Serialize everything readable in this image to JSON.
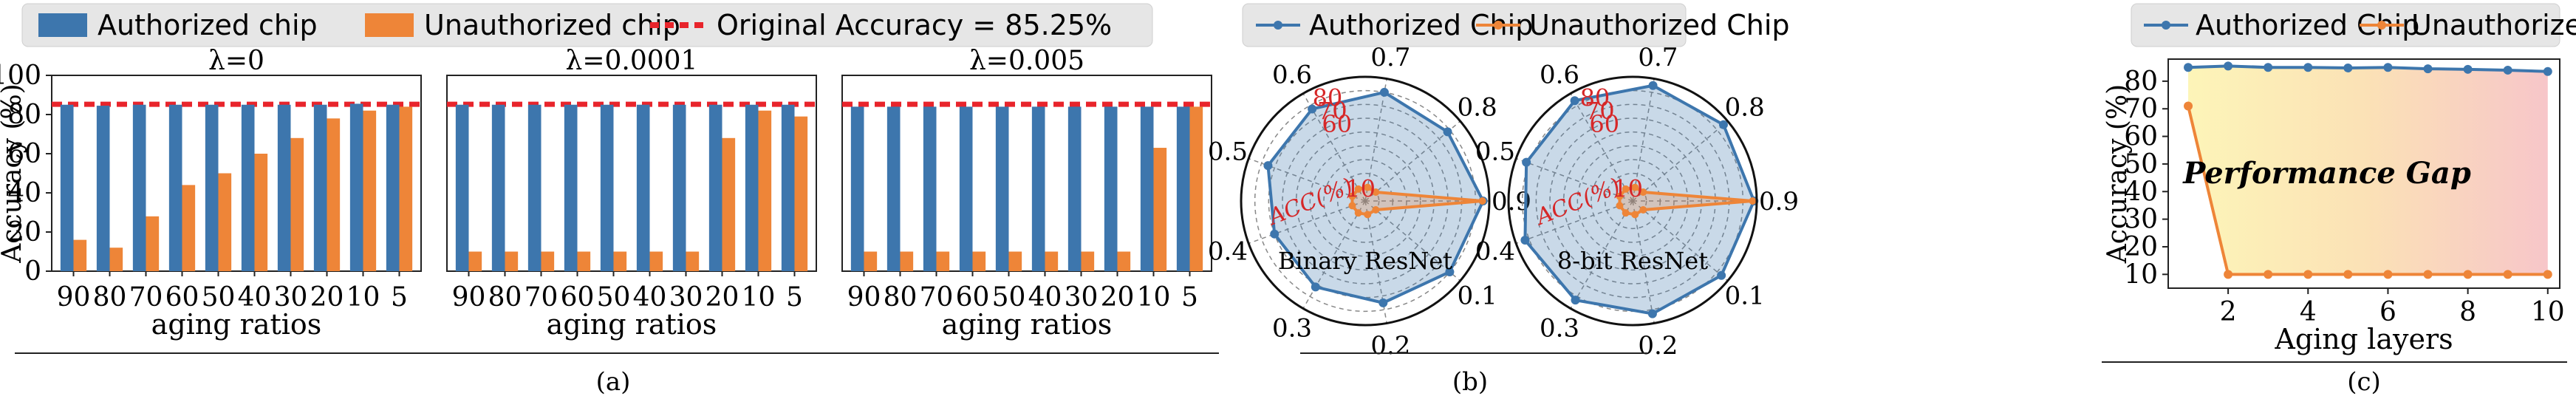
{
  "legend_a": {
    "authorized": "Authorized chip",
    "unauthorized": "Unauthorized chip",
    "original": "Original Accuracy = 85.25%"
  },
  "legend_b": {
    "authorized": "Authorized Chip",
    "unauthorized": "Unauthorized Chip"
  },
  "legend_c": {
    "authorized": "Authorized Chip",
    "unauthorized": "Unauthorized Chip"
  },
  "captions": {
    "a": "(a)",
    "b": "(b)",
    "c": "(c)"
  },
  "colors": {
    "authorized": "#3d76ad",
    "unauthorized": "#ee8538",
    "original": "#e8242b",
    "acc_label": "#d62728"
  },
  "chart_data": [
    {
      "id": "a",
      "type": "bar",
      "ylabel": "Accuracy (%)",
      "xlabel": "aging ratios",
      "ylim": [
        0,
        100
      ],
      "yticks": [
        0,
        20,
        40,
        60,
        80,
        100
      ],
      "reference_line": 85.25,
      "categories": [
        "90",
        "80",
        "70",
        "60",
        "50",
        "40",
        "30",
        "20",
        "10",
        "5"
      ],
      "panels": [
        {
          "title": "λ=0",
          "series": [
            {
              "name": "Authorized chip",
              "values": [
                85,
                84.5,
                85,
                85,
                85,
                85,
                85,
                85,
                85.5,
                85
              ]
            },
            {
              "name": "Unauthorized chip",
              "values": [
                16,
                12,
                28,
                44,
                50,
                60,
                68,
                78,
                82,
                84
              ]
            }
          ]
        },
        {
          "title": "λ=0.0001",
          "series": [
            {
              "name": "Authorized chip",
              "values": [
                85,
                85,
                85,
                85,
                85,
                85,
                85,
                85,
                85,
                85
              ]
            },
            {
              "name": "Unauthorized chip",
              "values": [
                10,
                10,
                10,
                10,
                10,
                10,
                10,
                68,
                82,
                79
              ]
            }
          ]
        },
        {
          "title": "λ=0.005",
          "series": [
            {
              "name": "Authorized chip",
              "values": [
                84,
                84,
                84,
                84,
                84,
                84,
                84,
                84,
                84,
                84
              ]
            },
            {
              "name": "Unauthorized chip",
              "values": [
                10,
                10,
                10,
                10,
                10,
                10,
                10,
                10,
                63,
                84
              ]
            }
          ]
        }
      ]
    },
    {
      "id": "b",
      "type": "radar",
      "angle_labels": [
        "0.9",
        "0.1",
        "0.2",
        "0.3",
        "0.4",
        "0.5",
        "0.6",
        "0.7",
        "0.8"
      ],
      "radial_labels": [
        "10",
        "60",
        "70",
        "80"
      ],
      "radial_range": [
        0,
        90
      ],
      "radial_axis_label": "ACC(%)",
      "panels": [
        {
          "title": "Binary ResNet",
          "series": [
            {
              "name": "Authorized Chip",
              "values": [
                85.5,
                80,
                75,
                72,
                70,
                75,
                77,
                80,
                78
              ]
            },
            {
              "name": "Unauthorized Chip",
              "values": [
                85,
                10,
                10,
                10,
                10,
                10,
                10,
                10,
                10
              ]
            }
          ]
        },
        {
          "title": "8-bit ResNet",
          "series": [
            {
              "name": "Authorized Chip",
              "values": [
                88,
                84,
                83,
                83,
                83,
                82,
                84,
                85,
                86
              ]
            },
            {
              "name": "Unauthorized Chip",
              "values": [
                87,
                10,
                10,
                10,
                10,
                10,
                10,
                10,
                10
              ]
            }
          ]
        }
      ]
    },
    {
      "id": "c",
      "type": "line",
      "xlabel": "Aging layers",
      "ylabel": "Accuracy (%)",
      "annotation": "Performance Gap",
      "x": [
        1,
        2,
        3,
        4,
        5,
        6,
        7,
        8,
        9,
        10
      ],
      "xlim": [
        0.5,
        10.3
      ],
      "ylim": [
        5,
        88
      ],
      "xticks": [
        2,
        4,
        6,
        8,
        10
      ],
      "yticks": [
        10,
        20,
        30,
        40,
        50,
        60,
        70,
        80
      ],
      "series": [
        {
          "name": "Authorized Chip",
          "values": [
            85,
            85.5,
            85,
            85,
            84.8,
            85,
            84.5,
            84.3,
            84,
            83.5
          ]
        },
        {
          "name": "Unauthorized Chip",
          "values": [
            71,
            10,
            10,
            10,
            10,
            10,
            10,
            10,
            10,
            10
          ]
        }
      ]
    }
  ]
}
